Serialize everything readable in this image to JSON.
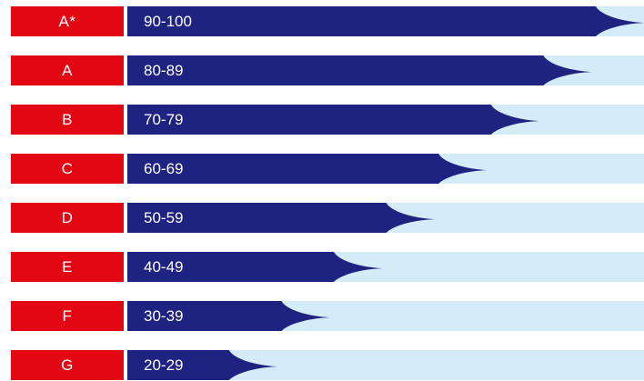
{
  "colors": {
    "grade_background": "#e30613",
    "bar_fill": "#1e2382",
    "track_background": "#d4ebf8",
    "text": "#ffffff"
  },
  "grades": [
    {
      "grade": "A*",
      "range": "90-100",
      "lower_bound": 90
    },
    {
      "grade": "A",
      "range": "80-89",
      "lower_bound": 80
    },
    {
      "grade": "B",
      "range": "70-79",
      "lower_bound": 70
    },
    {
      "grade": "C",
      "range": "60-69",
      "lower_bound": 60
    },
    {
      "grade": "D",
      "range": "50-59",
      "lower_bound": 50
    },
    {
      "grade": "E",
      "range": "40-49",
      "lower_bound": 40
    },
    {
      "grade": "F",
      "range": "30-39",
      "lower_bound": 30
    },
    {
      "grade": "G",
      "range": "20-29",
      "lower_bound": 20
    }
  ]
}
